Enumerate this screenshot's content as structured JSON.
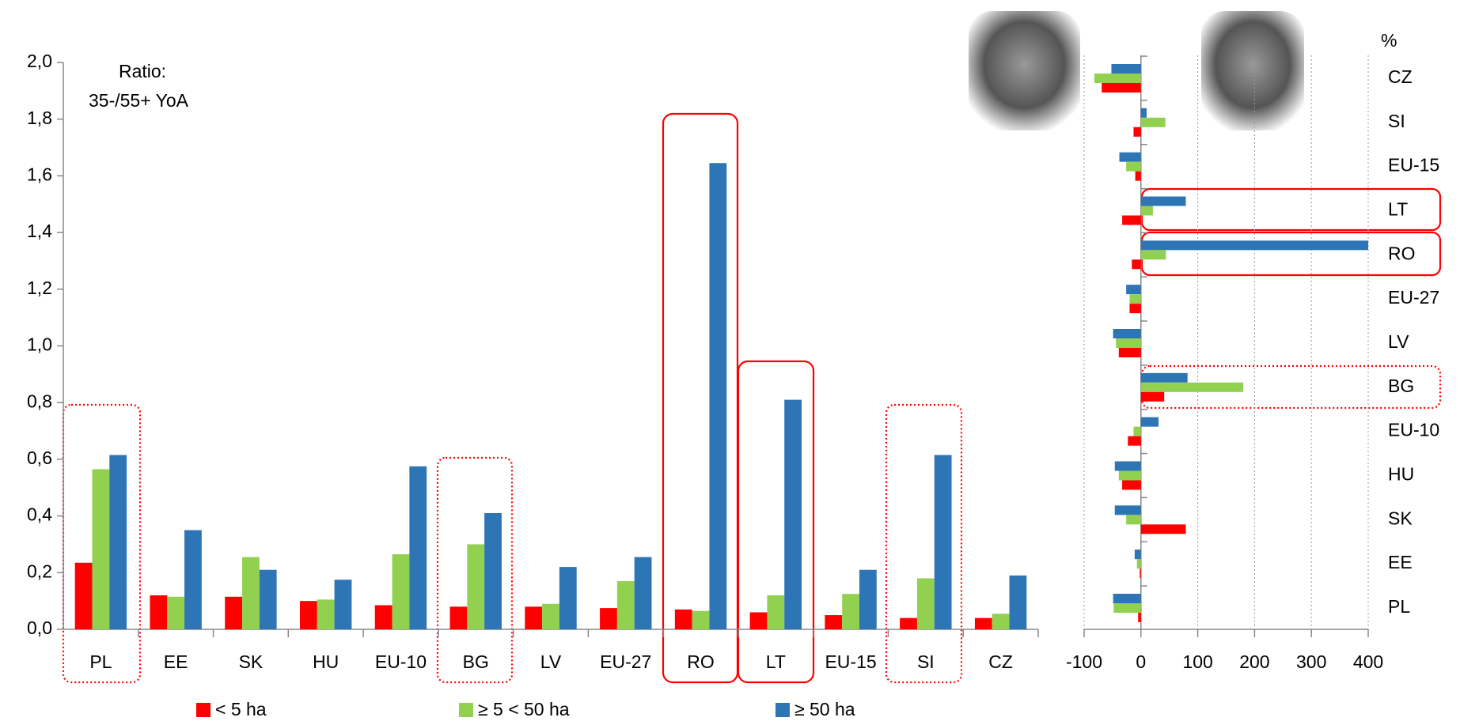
{
  "chart_data": [
    {
      "type": "bar",
      "orientation": "vertical",
      "annotation": [
        "Ratio:",
        "35-/55+ YoA"
      ],
      "categories": [
        "PL",
        "EE",
        "SK",
        "HU",
        "EU-10",
        "BG",
        "LV",
        "EU-27",
        "RO",
        "LT",
        "EU-15",
        "SI",
        "CZ"
      ],
      "series": [
        {
          "name": "< 5 ha",
          "color": "#ff0000",
          "values": [
            0.235,
            0.12,
            0.115,
            0.1,
            0.085,
            0.08,
            0.08,
            0.075,
            0.07,
            0.06,
            0.05,
            0.04,
            0.04
          ]
        },
        {
          "name": "≥ 5 < 50 ha",
          "color": "#92d050",
          "values": [
            0.565,
            0.115,
            0.255,
            0.105,
            0.265,
            0.3,
            0.09,
            0.17,
            0.065,
            0.12,
            0.125,
            0.18,
            0.055
          ]
        },
        {
          "name": "≥ 50 ha",
          "color": "#2e75b6",
          "values": [
            0.615,
            0.35,
            0.21,
            0.175,
            0.575,
            0.41,
            0.22,
            0.255,
            1.645,
            0.81,
            0.21,
            0.615,
            0.19
          ]
        }
      ],
      "ylim": [
        0,
        2
      ],
      "yticks": [
        {
          "value": 0,
          "label": "0,0"
        },
        {
          "value": 0.2,
          "label": "0,2"
        },
        {
          "value": 0.4,
          "label": "0,4"
        },
        {
          "value": 0.6,
          "label": "0,6"
        },
        {
          "value": 0.8,
          "label": "0,8"
        },
        {
          "value": 1.0,
          "label": "1,0"
        },
        {
          "value": 1.2,
          "label": "1,2"
        },
        {
          "value": 1.4,
          "label": "1,4"
        },
        {
          "value": 1.6,
          "label": "1,6"
        },
        {
          "value": 1.8,
          "label": "1,8"
        },
        {
          "value": 2.0,
          "label": "2,0"
        }
      ],
      "grid": false,
      "legend": "bottom"
    },
    {
      "type": "bar",
      "orientation": "horizontal",
      "unit_label": "%",
      "categories": [
        "CZ",
        "SI",
        "EU-15",
        "LT",
        "RO",
        "EU-27",
        "LV",
        "BG",
        "EU-10",
        "HU",
        "SK",
        "EE",
        "PL"
      ],
      "series": [
        {
          "color": "#2e75b6",
          "values": [
            -52,
            10,
            -38,
            79,
            400,
            -26,
            -49,
            82,
            31,
            -46,
            -46,
            -11,
            -49
          ]
        },
        {
          "color": "#92d050",
          "values": [
            -82,
            43,
            -26,
            21,
            44,
            -20,
            -44,
            180,
            -13,
            -39,
            -26,
            -7,
            -48
          ]
        },
        {
          "color": "#ff0000",
          "values": [
            -69,
            -13,
            -10,
            -33,
            -16,
            -20,
            -39,
            41,
            -23,
            -33,
            79,
            -2,
            -5
          ]
        }
      ],
      "xlim": [
        -100,
        400
      ],
      "xticks": [
        -100,
        0,
        100,
        200,
        300,
        400
      ],
      "grid": true
    }
  ]
}
